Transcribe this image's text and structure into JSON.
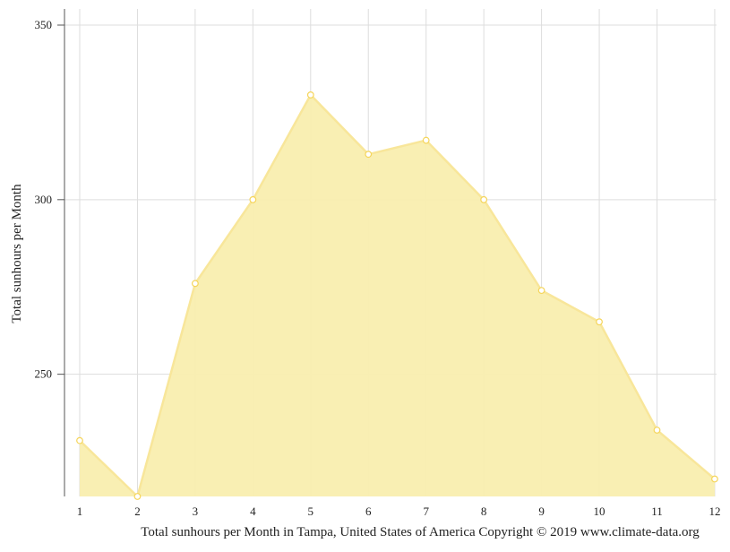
{
  "chart_data": {
    "type": "area",
    "x": [
      1,
      2,
      3,
      4,
      5,
      6,
      7,
      8,
      9,
      10,
      11,
      12
    ],
    "series": [
      {
        "values": [
          231,
          215,
          276,
          300,
          330,
          313,
          317,
          300,
          274,
          265,
          234,
          220
        ]
      }
    ],
    "ylabel": "Total sunhours per Month",
    "xlabel": "Total sunhours per Month in Tampa, United States of America Copyright © 2019 www.climate-data.org",
    "ylim": [
      215,
      354
    ],
    "yticks": [
      250,
      300,
      350
    ],
    "grid": true,
    "colors": {
      "fill": "#f9eeaf",
      "line": "#f8e69a",
      "marker_stroke": "#f5d55a",
      "grid": "#dddddd",
      "axis": "#555555"
    }
  }
}
